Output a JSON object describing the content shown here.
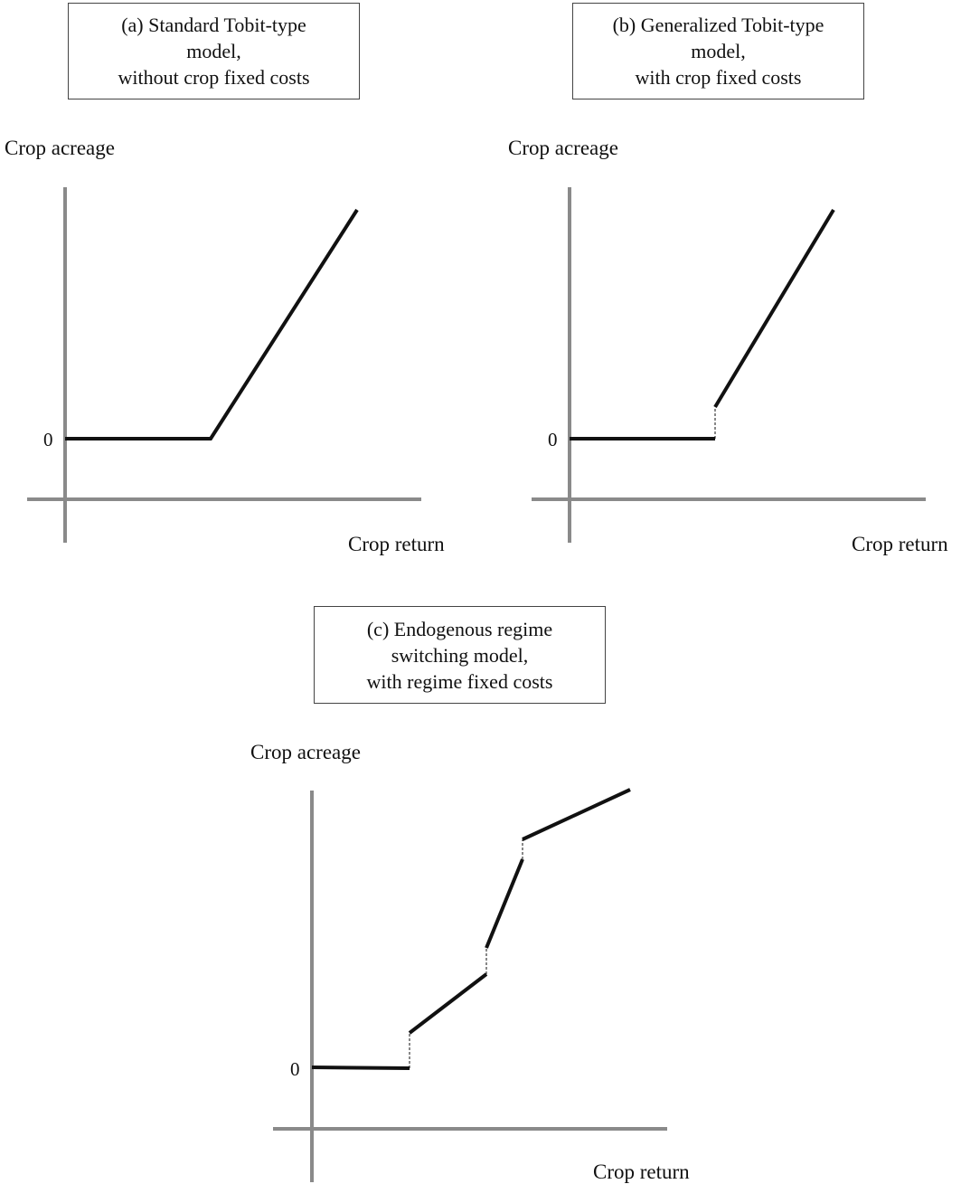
{
  "panels": {
    "a": {
      "title_lines": [
        "(a) Standard Tobit-type",
        "model,",
        "without crop fixed costs"
      ],
      "y_axis_label": "Crop acreage",
      "x_axis_label": "Crop return",
      "zero_label": "0"
    },
    "b": {
      "title_lines": [
        "(b) Generalized Tobit-type",
        "model,",
        "with crop fixed costs"
      ],
      "y_axis_label": "Crop acreage",
      "x_axis_label": "Crop return",
      "zero_label": "0"
    },
    "c": {
      "title_lines": [
        "(c) Endogenous regime",
        "switching model,",
        "with regime fixed costs"
      ],
      "y_axis_label": "Crop acreage",
      "x_axis_label": "Crop return",
      "zero_label": "0"
    }
  },
  "colors": {
    "axis": "#8a8a8a",
    "curve": "#111111"
  }
}
